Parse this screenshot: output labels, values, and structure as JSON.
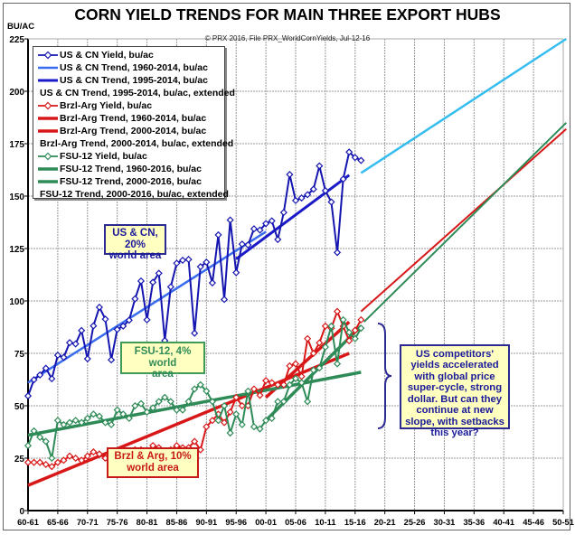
{
  "chart_data": {
    "type": "line",
    "title": "CORN YIELD TRENDS FOR MAIN THREE EXPORT HUBS",
    "subtitle": "© PRX 2016, File PRX_WorldCornYields, Jul-12-16",
    "ylabel": "BU/AC",
    "xlabel": "",
    "ylim": [
      0,
      225
    ],
    "yticks": [
      0,
      25,
      50,
      75,
      100,
      125,
      150,
      175,
      200,
      225
    ],
    "x_start_year": 1960,
    "xlim_years": [
      1960,
      2050
    ],
    "xtick_labels": [
      "60-61",
      "65-66",
      "70-71",
      "75-76",
      "80-81",
      "85-86",
      "90-91",
      "95-96",
      "00-01",
      "05-06",
      "10-11",
      "15-16",
      "20-21",
      "25-26",
      "30-31",
      "35-36",
      "40-41",
      "45-46",
      "50-51"
    ],
    "grid": true,
    "legend_position": "top-left",
    "series": [
      {
        "name": "US & CN Yield, bu/ac",
        "kind": "yield",
        "color": "#1515b0",
        "start_year": 1960,
        "values": [
          54.7,
          62.4,
          64.7,
          67.9,
          62.9,
          74.1,
          73.1,
          80.1,
          79.5,
          85.9,
          72.4,
          88.1,
          97,
          91.3,
          71.9,
          86.4,
          88,
          90.8,
          101,
          109.5,
          91,
          108.9,
          113.2,
          81.1,
          106.7,
          118,
          119.4,
          119.8,
          84.6,
          116.3,
          118.5,
          108.6,
          131.5,
          100.7,
          138.6,
          113.5,
          127.1,
          126.7,
          134.4,
          133.8,
          136.9,
          138.2,
          129.3,
          142.2,
          160.3,
          147.9,
          149.1,
          150.7,
          153.3,
          164.4,
          152.6,
          147.2,
          123.1,
          158.1,
          171,
          168.4,
          167
        ]
      },
      {
        "name": "US & CN Trend, 1960-2014, bu/ac",
        "kind": "trend",
        "color": "#3a6cf0",
        "width": 2.5,
        "points": [
          [
            1960,
            61
          ],
          [
            2000,
            133
          ]
        ]
      },
      {
        "name": "US & CN Trend, 1995-2014, bu/ac",
        "kind": "trend",
        "color": "#1a1ac8",
        "width": 3,
        "points": [
          [
            1995,
            120
          ],
          [
            2014,
            160
          ]
        ]
      },
      {
        "name": "US & CN Trend, 1995-2014, bu/ac, extended",
        "kind": "trend",
        "color": "#36bdf0",
        "width": 2.5,
        "points": [
          [
            2016,
            161
          ],
          [
            2050.5,
            225
          ]
        ]
      },
      {
        "name": "Brzl-Arg Yield, bu/ac",
        "kind": "yield",
        "color": "#d81818",
        "start_year": 1960,
        "values": [
          23,
          23,
          23,
          22,
          21,
          23,
          24,
          26,
          25,
          24,
          26,
          28,
          27,
          25,
          27,
          27,
          29,
          27,
          29,
          29,
          28,
          31,
          30,
          28,
          29,
          31,
          30,
          30,
          33,
          29,
          40,
          43,
          46,
          42,
          47,
          54,
          50,
          50,
          58,
          55,
          62,
          61,
          60,
          60,
          69,
          70,
          64,
          82,
          75,
          80,
          88,
          87,
          95,
          88,
          81,
          86,
          91
        ]
      },
      {
        "name": "Brzl-Arg Trend, 1960-2014, bu/ac",
        "kind": "trend",
        "color": "#d81818",
        "width": 3.5,
        "points": [
          [
            1960,
            12
          ],
          [
            2014,
            75
          ]
        ]
      },
      {
        "name": "Brzl-Arg Trend, 2000-2014, bu/ac",
        "kind": "trend",
        "color": "#d81818",
        "width": 3.5,
        "points": [
          [
            2000,
            54
          ],
          [
            2014,
            90
          ]
        ]
      },
      {
        "name": "Brzl-Arg Trend, 2000-2014, bu/ac, extended",
        "kind": "trend",
        "color": "#d81818",
        "width": 2,
        "points": [
          [
            2016,
            95
          ],
          [
            2050.5,
            182
          ]
        ]
      },
      {
        "name": "FSU-12 Yield, bu/ac",
        "kind": "yield",
        "color": "#2e8b57",
        "start_year": 1960,
        "values": [
          31,
          38,
          35,
          33,
          25,
          43,
          41,
          42,
          43,
          42,
          44,
          46,
          45,
          42,
          41,
          48,
          46,
          44,
          50,
          51,
          47,
          49,
          52,
          54,
          52,
          48,
          48,
          52,
          58,
          60,
          57,
          52,
          43,
          50,
          37,
          46,
          41,
          57,
          40,
          39,
          43,
          44,
          52,
          52,
          60,
          63,
          61,
          52,
          67,
          68,
          78,
          88,
          70,
          91,
          85,
          82,
          87
        ]
      },
      {
        "name": "FSU-12 Trend, 1960-2016, bu/ac",
        "kind": "trend",
        "color": "#2e8b57",
        "width": 3.5,
        "points": [
          [
            1960,
            36
          ],
          [
            2016,
            66
          ]
        ]
      },
      {
        "name": "FSU-12 Trend, 2000-2016, bu/ac",
        "kind": "trend",
        "color": "#2e8b57",
        "width": 3.5,
        "points": [
          [
            2000,
            43
          ],
          [
            2016,
            88
          ]
        ]
      },
      {
        "name": "FSU-12 Trend, 2000-2016, bu/ac, extended",
        "kind": "trend",
        "color": "#2e8b57",
        "width": 2,
        "points": [
          [
            2016.5,
            90
          ],
          [
            2050.5,
            185
          ]
        ]
      }
    ],
    "annotations": {
      "us": "US & CN, 20% world area",
      "us_line1": "US & CN, 20%",
      "us_line2": "world area",
      "fsu_line1": "FSU-12, 4% world",
      "fsu_line2": "area",
      "brzl_line1": "Brzl & Arg, 10%",
      "brzl_line2": "world area",
      "note": "US competitors' yields accelerated with global price super-cycle, strong dollar. But can they continue at new slope, with setbacks this year?"
    }
  }
}
